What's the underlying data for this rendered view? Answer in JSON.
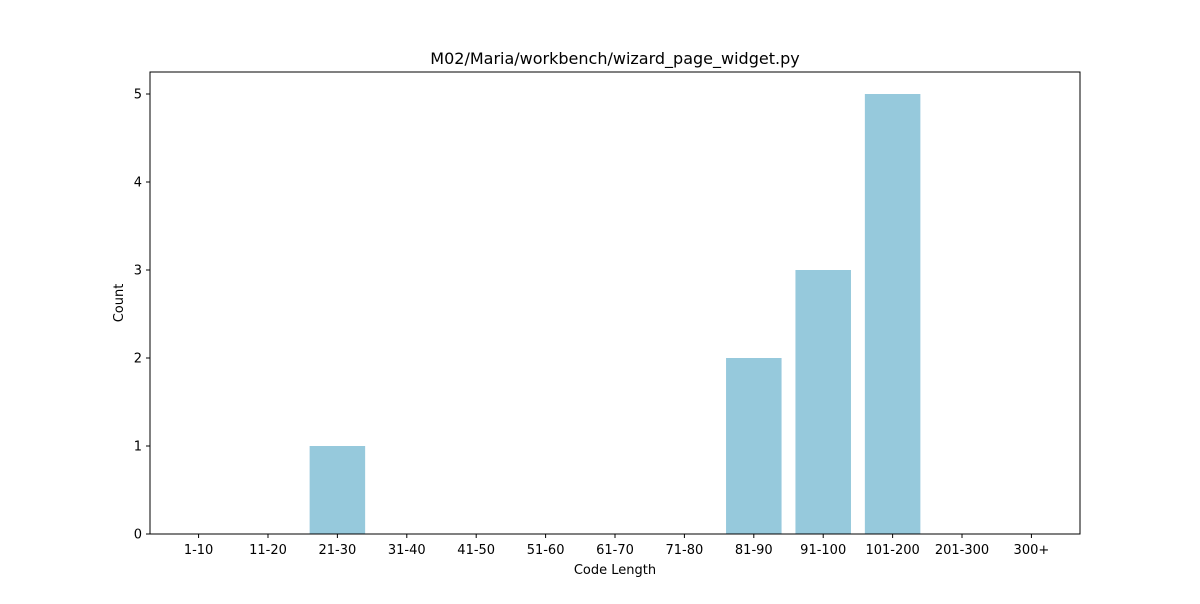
{
  "chart_data": {
    "type": "bar",
    "title": "M02/Maria/workbench/wizard_page_widget.py",
    "xlabel": "Code Length",
    "ylabel": "Count",
    "categories": [
      "1-10",
      "11-20",
      "21-30",
      "31-40",
      "41-50",
      "51-60",
      "61-70",
      "71-80",
      "81-90",
      "91-100",
      "101-200",
      "201-300",
      "300+"
    ],
    "values": [
      0,
      0,
      1,
      0,
      0,
      0,
      0,
      0,
      2,
      3,
      5,
      0,
      0
    ],
    "yticks": [
      0,
      1,
      2,
      3,
      4,
      5
    ],
    "ylim": [
      0,
      5.25
    ],
    "grid": false,
    "colors": {
      "bar": "#96c9dc",
      "axis": "#000000",
      "background": "#ffffff"
    }
  }
}
